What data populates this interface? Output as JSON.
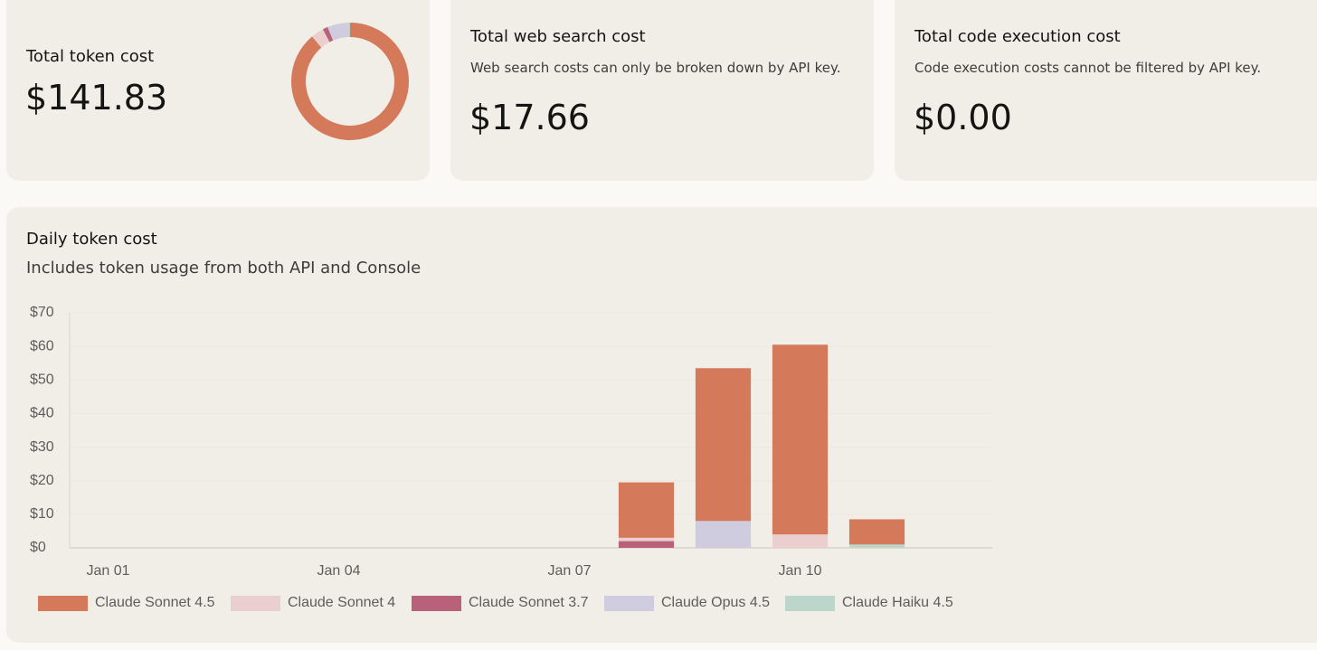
{
  "cards": [
    {
      "title": "Total token cost",
      "value": "$141.83"
    },
    {
      "title": "Total web search cost",
      "description": "Web search costs can only be broken down by API key.",
      "value": "$17.66"
    },
    {
      "title": "Total code execution cost",
      "description": "Code execution costs cannot be filtered by API key.",
      "value": "$0.00"
    }
  ],
  "chart_data": {
    "type": "bar",
    "stacked": true,
    "title": "Daily token cost",
    "subtitle": "Includes token usage from both API and Console",
    "categories": [
      "Jan 01",
      null,
      null,
      "Jan 04",
      null,
      null,
      "Jan 07",
      null,
      null,
      "Jan 10",
      null,
      null
    ],
    "series": [
      {
        "name": "Claude Sonnet 4.5",
        "color": "#d4795a",
        "values": [
          0,
          0,
          0,
          0,
          0,
          0,
          0,
          16.5,
          45.5,
          56.5,
          7.5,
          0
        ]
      },
      {
        "name": "Claude Sonnet 4",
        "color": "#ebcfcf",
        "values": [
          0,
          0,
          0,
          0,
          0,
          0,
          0,
          1,
          0,
          4,
          0,
          0
        ]
      },
      {
        "name": "Claude Sonnet 3.7",
        "color": "#b9607a",
        "values": [
          0,
          0,
          0,
          0,
          0,
          0,
          0,
          2,
          0,
          0,
          0,
          0
        ]
      },
      {
        "name": "Claude Opus 4.5",
        "color": "#cfcce0",
        "values": [
          0,
          0,
          0,
          0,
          0,
          0,
          0,
          0,
          8,
          0,
          0,
          0
        ]
      },
      {
        "name": "Claude Haiku 4.5",
        "color": "#bcd6cc",
        "values": [
          0,
          0,
          0,
          0,
          0,
          0,
          0,
          0,
          0,
          0,
          1,
          0
        ]
      }
    ],
    "ylim": [
      0,
      70
    ],
    "yticks": [
      {
        "value": 0,
        "label": "$0"
      },
      {
        "value": 10,
        "label": "$10"
      },
      {
        "value": 20,
        "label": "$20"
      },
      {
        "value": 30,
        "label": "$30"
      },
      {
        "value": 40,
        "label": "$40"
      },
      {
        "value": 50,
        "label": "$50"
      },
      {
        "value": 60,
        "label": "$60"
      },
      {
        "value": 70,
        "label": "$70"
      }
    ],
    "grid": true
  }
}
